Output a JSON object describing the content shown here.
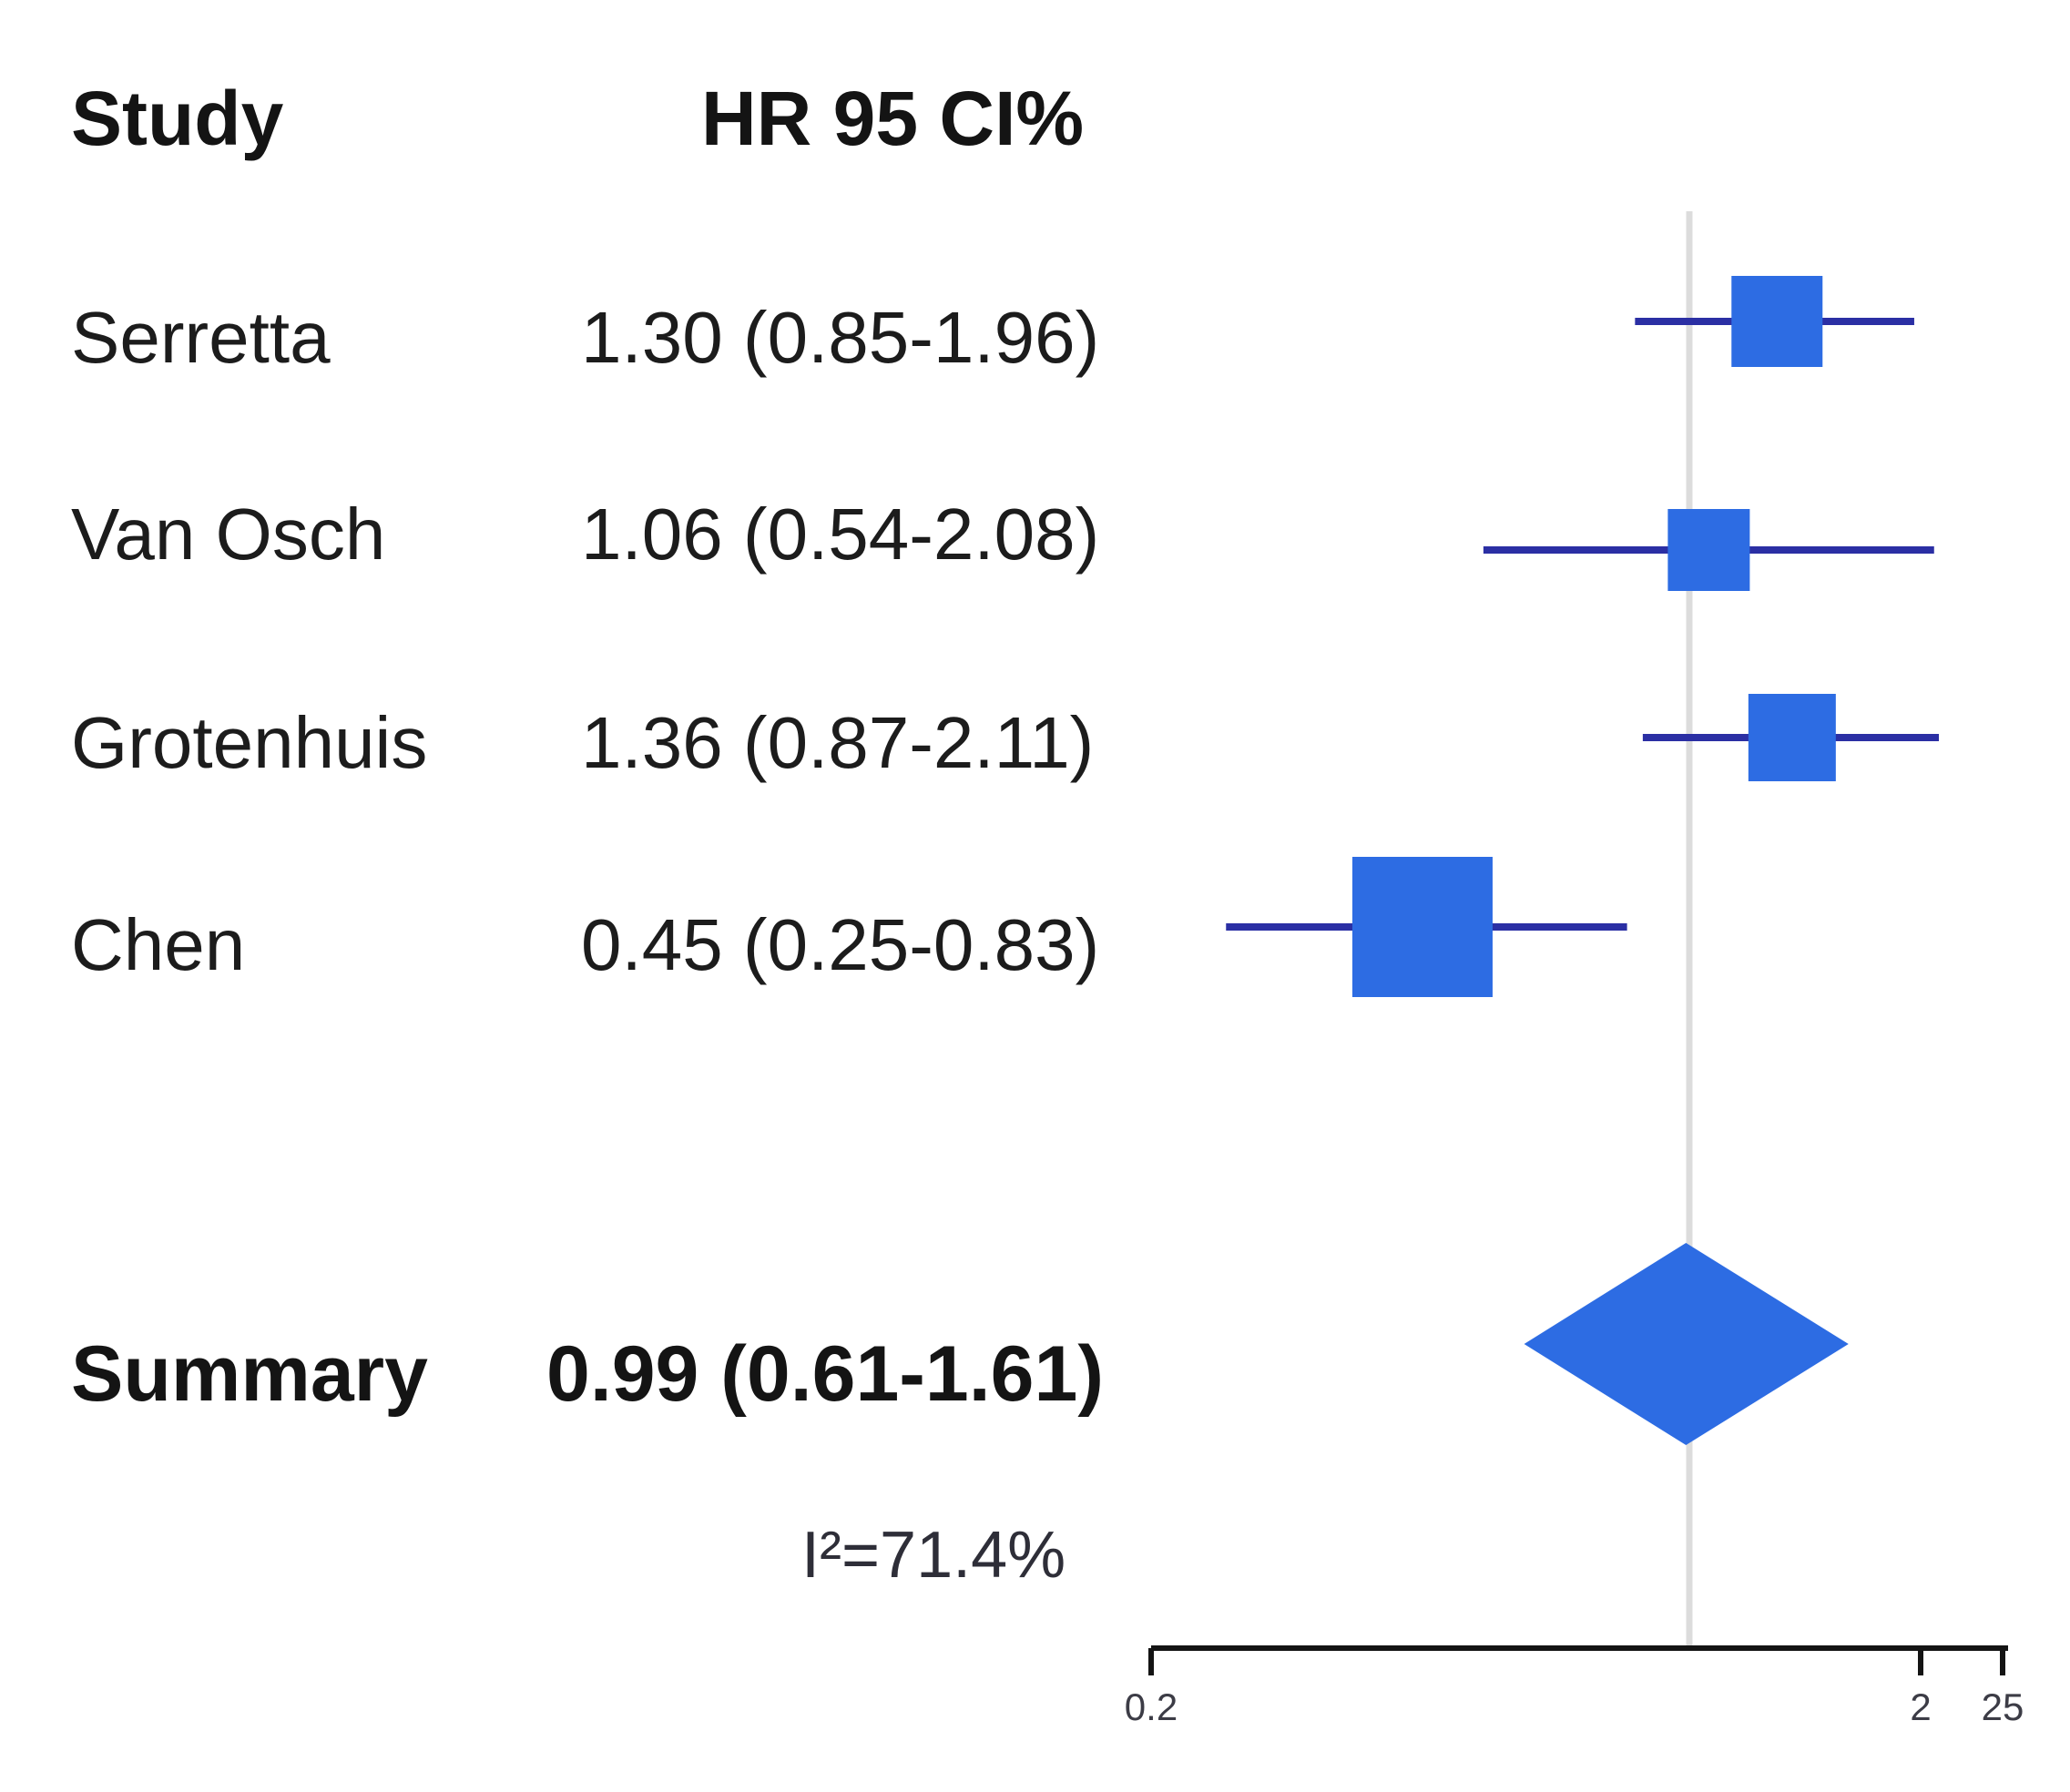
{
  "figure": {
    "col_study_header": "Study",
    "col_hr_header": "HR 95 CI%",
    "heterogeneity_label": "I²=71.4%"
  },
  "chart_data": {
    "type": "forest",
    "title": "",
    "xlabel": "",
    "ylabel": "",
    "studies": [
      {
        "name": "Serretta",
        "hr": 1.3,
        "ci_low": 0.85,
        "ci_high": 1.96,
        "hr_ci_label": "1.30 (0.85-1.96)",
        "box_size": 100
      },
      {
        "name": "Van Osch",
        "hr": 1.06,
        "ci_low": 0.54,
        "ci_high": 2.08,
        "hr_ci_label": "1.06 (0.54-2.08)",
        "box_size": 90
      },
      {
        "name": "Grotenhuis",
        "hr": 1.36,
        "ci_low": 0.87,
        "ci_high": 2.11,
        "hr_ci_label": "1.36 (0.87-2.11)",
        "box_size": 96
      },
      {
        "name": "Chen",
        "hr": 0.45,
        "ci_low": 0.25,
        "ci_high": 0.83,
        "hr_ci_label": "0.45 (0.25-0.83)",
        "box_size": 154
      }
    ],
    "summary": {
      "name": "Summary",
      "hr": 0.99,
      "ci_low": 0.61,
      "ci_high": 1.61,
      "hr_ci_label": "0.99 (0.61-1.61)"
    },
    "heterogeneity": "I²=71.4%",
    "x_axis": {
      "scale": "log",
      "tick_labels": [
        "0.2",
        "2",
        "25"
      ],
      "reference_line_value": 1
    },
    "legend": null,
    "grid": false,
    "colors": {
      "box": "#2d6ce3",
      "diamond": "#2d6ce3",
      "ci_line": "#2b2fa4",
      "reference_line": "#dcdcdc",
      "axis": "#141414"
    }
  }
}
